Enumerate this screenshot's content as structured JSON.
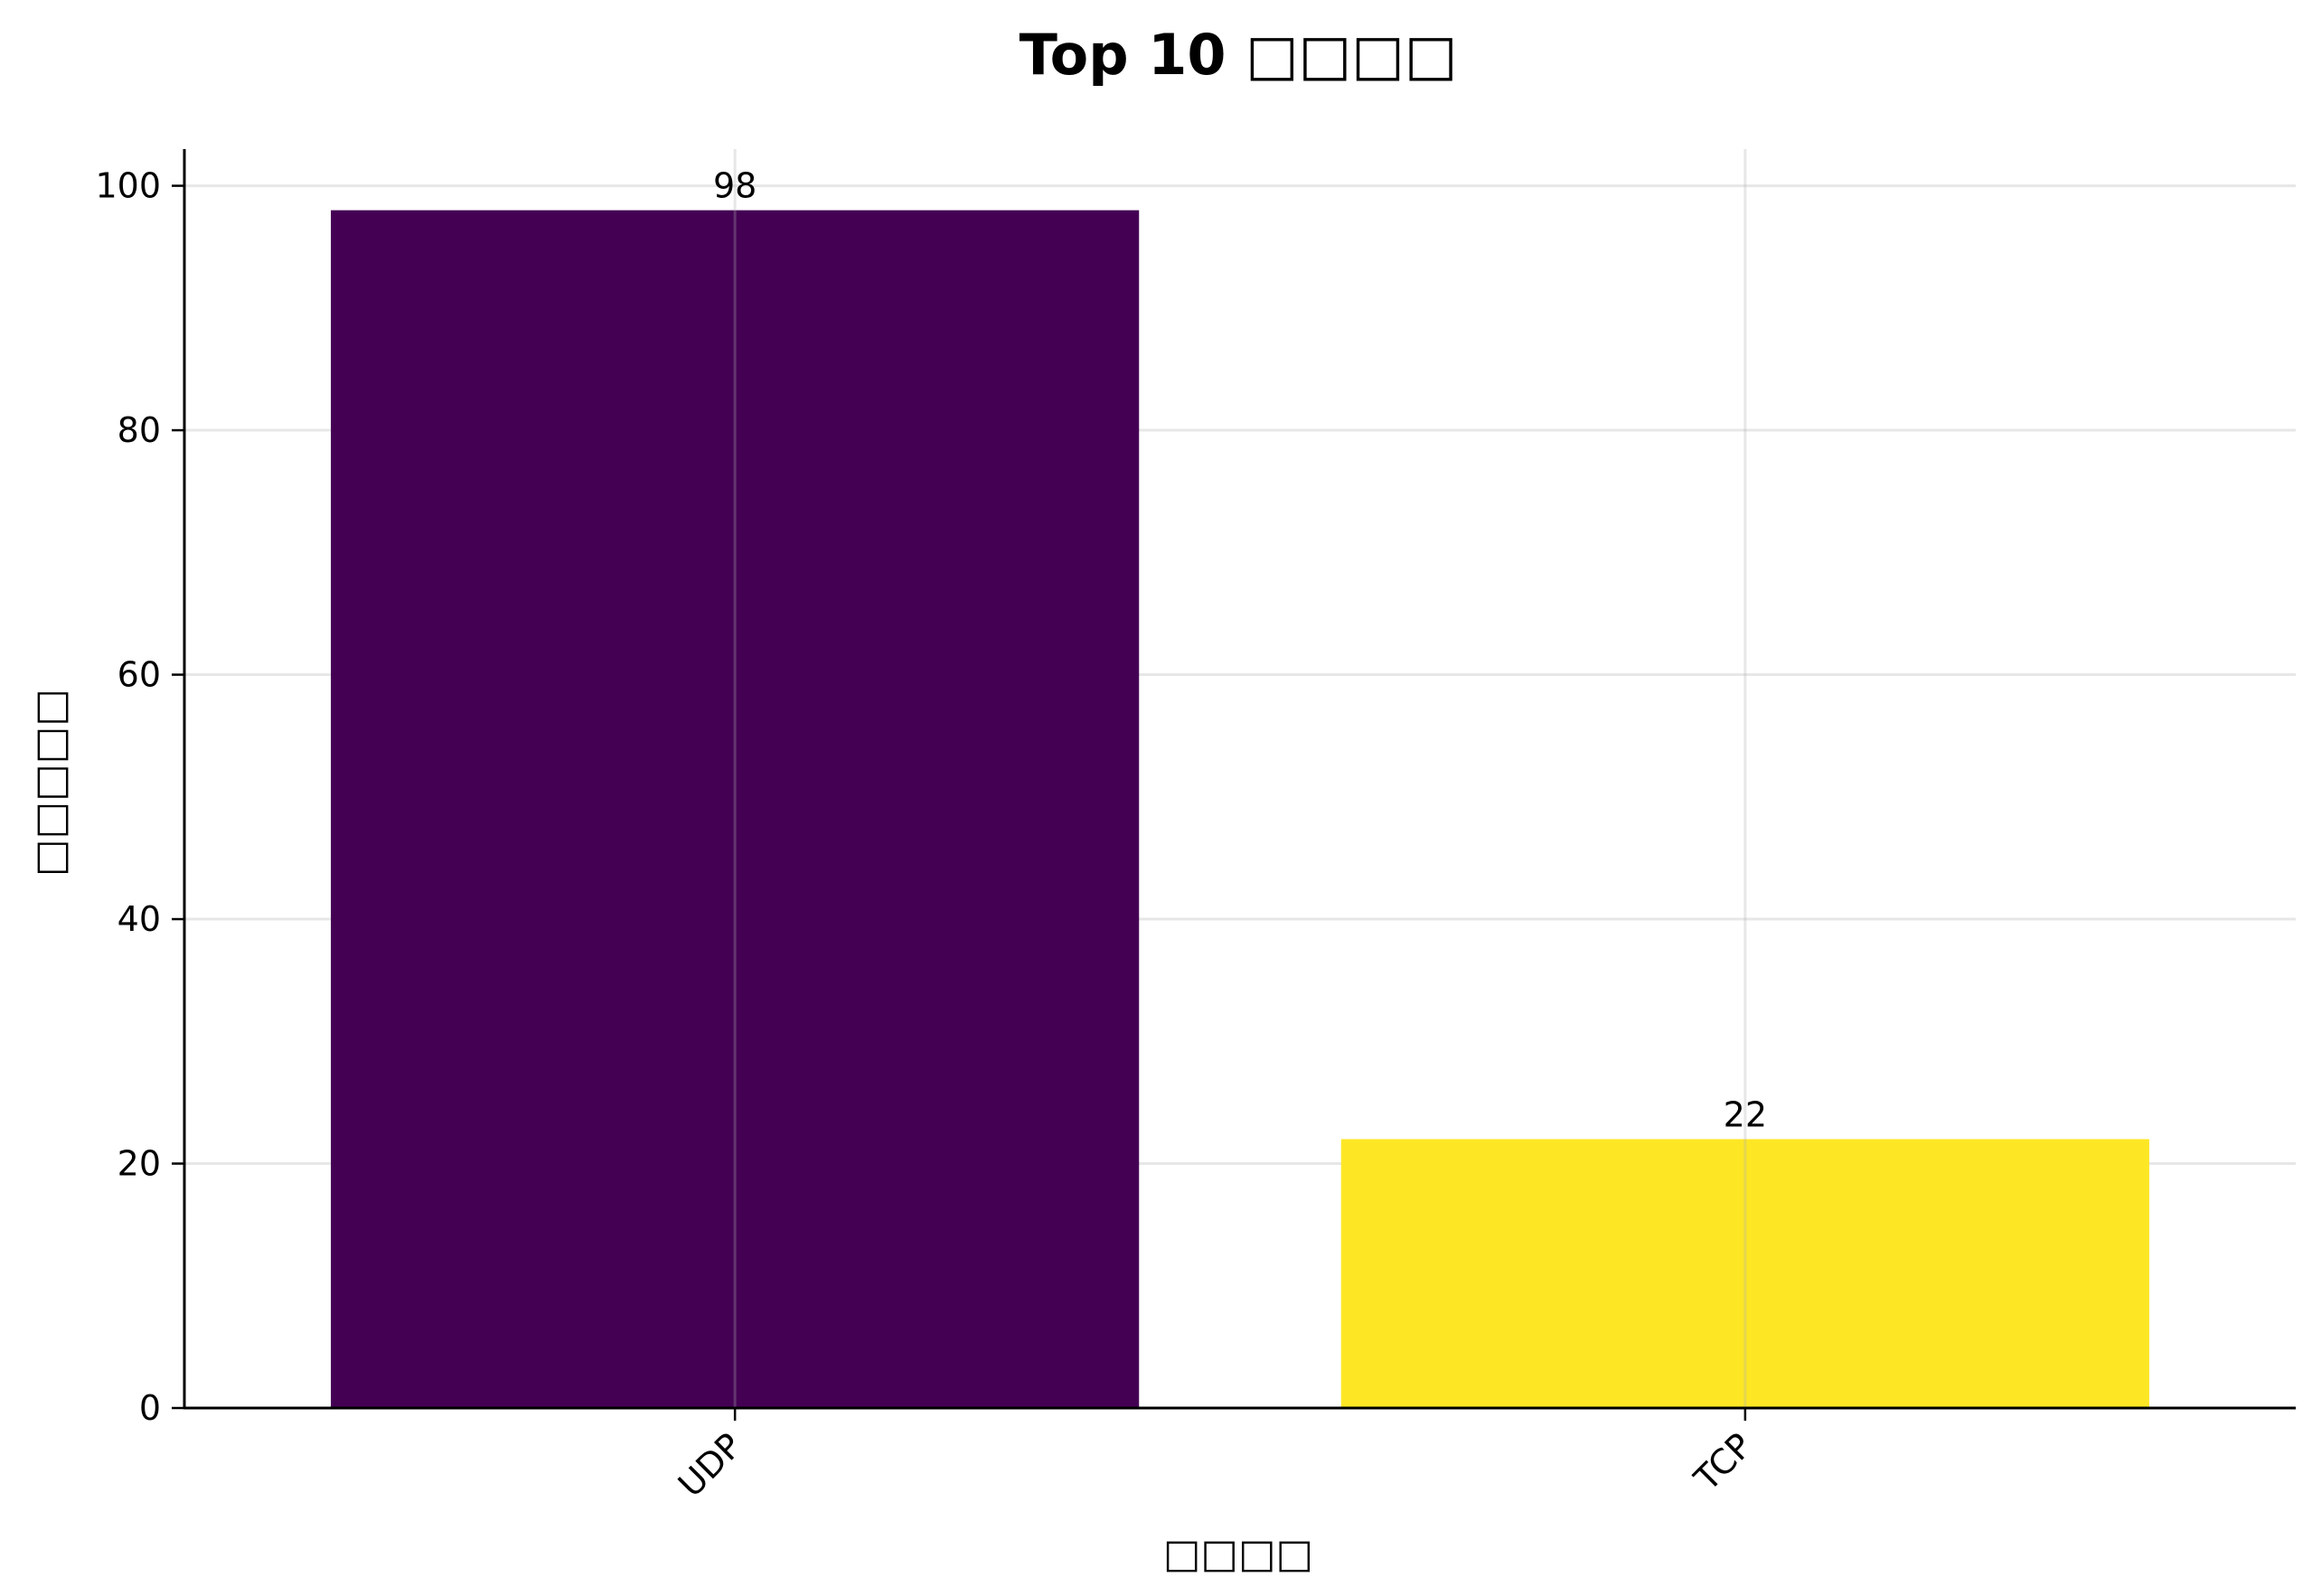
{
  "chart_data": {
    "type": "bar",
    "title": "Top 10 □□□□",
    "xlabel": "□□□□",
    "ylabel": "□□□□□",
    "categories": [
      "UDP",
      "TCP"
    ],
    "values": [
      98,
      22
    ],
    "data_labels": [
      "98",
      "22"
    ],
    "colors": [
      "#440154",
      "#fde725"
    ],
    "ylim": [
      0,
      103
    ],
    "yticks": [
      0,
      20,
      40,
      60,
      80,
      100
    ],
    "grid": true
  }
}
